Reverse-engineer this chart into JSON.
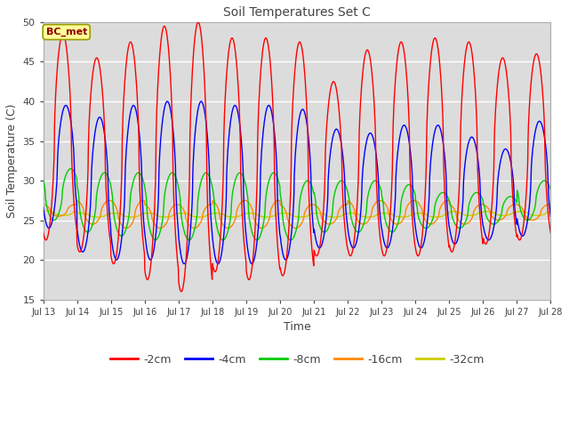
{
  "title": "Soil Temperatures Set C",
  "xlabel": "Time",
  "ylabel": "Soil Temperature (C)",
  "ylim": [
    15,
    50
  ],
  "annotation": "BC_met",
  "legend_labels": [
    "-2cm",
    "-4cm",
    "-8cm",
    "-16cm",
    "-32cm"
  ],
  "line_colors": [
    "#ff0000",
    "#0000ff",
    "#00cc00",
    "#ff8800",
    "#cccc00"
  ],
  "xtick_labels": [
    "Jul 13",
    "Jul 14",
    "Jul 15",
    "Jul 16",
    "Jul 17",
    "Jul 18",
    "Jul 19",
    "Jul 20",
    "Jul 21",
    "Jul 22",
    "Jul 23",
    "Jul 24",
    "Jul 25",
    "Jul 26",
    "Jul 27",
    "Jul 28"
  ],
  "plot_bg": "#dcdcdc",
  "fig_bg": "#ffffff",
  "grid_color": "#ffffff",
  "yticks": [
    15,
    20,
    25,
    30,
    35,
    40,
    45,
    50
  ],
  "day_peaks_2cm": [
    48.5,
    45.5,
    47.5,
    49.5,
    50.0,
    48.0,
    48.0,
    47.5,
    42.5,
    46.5,
    47.5,
    48.0,
    47.5,
    45.5,
    46.0
  ],
  "day_troughs_2cm": [
    22.5,
    21.0,
    19.5,
    17.5,
    16.0,
    18.5,
    17.5,
    18.0,
    20.5,
    20.5,
    20.5,
    20.5,
    21.0,
    22.0,
    22.5
  ],
  "day_peaks_4cm": [
    39.5,
    38.0,
    39.5,
    40.0,
    40.0,
    39.5,
    39.5,
    39.0,
    36.5,
    36.0,
    37.0,
    37.0,
    35.5,
    34.0,
    37.5
  ],
  "day_troughs_4cm": [
    24.0,
    21.0,
    20.0,
    20.0,
    19.5,
    19.5,
    19.5,
    20.0,
    21.5,
    21.5,
    21.5,
    21.5,
    22.0,
    22.5,
    23.0
  ],
  "day_peaks_8cm": [
    31.5,
    31.0,
    31.0,
    31.0,
    31.0,
    31.0,
    31.0,
    30.0,
    30.0,
    30.0,
    29.5,
    28.5,
    28.5,
    28.0,
    30.0
  ],
  "day_troughs_8cm": [
    25.0,
    23.5,
    23.0,
    22.5,
    22.5,
    22.5,
    22.5,
    22.5,
    23.5,
    23.5,
    23.5,
    24.0,
    24.0,
    24.5,
    25.0
  ],
  "day_peaks_16cm": [
    27.0,
    27.5,
    27.5,
    27.0,
    27.0,
    27.5,
    27.5,
    27.0,
    27.0,
    27.5,
    27.5,
    27.5,
    27.0,
    27.0,
    27.0
  ],
  "day_troughs_16cm": [
    25.5,
    24.5,
    24.0,
    24.0,
    24.0,
    24.0,
    24.0,
    24.0,
    24.5,
    24.5,
    24.5,
    24.5,
    24.5,
    25.0,
    25.0
  ],
  "day_peaks_32cm": [
    26.2,
    25.9,
    25.9,
    25.9,
    25.9,
    25.9,
    25.9,
    25.9,
    25.9,
    25.9,
    25.9,
    25.9,
    26.1,
    26.1,
    26.1
  ],
  "day_troughs_32cm": [
    25.6,
    25.4,
    25.4,
    25.4,
    25.4,
    25.4,
    25.4,
    25.4,
    25.4,
    25.4,
    25.4,
    25.4,
    25.6,
    25.6,
    25.6
  ]
}
